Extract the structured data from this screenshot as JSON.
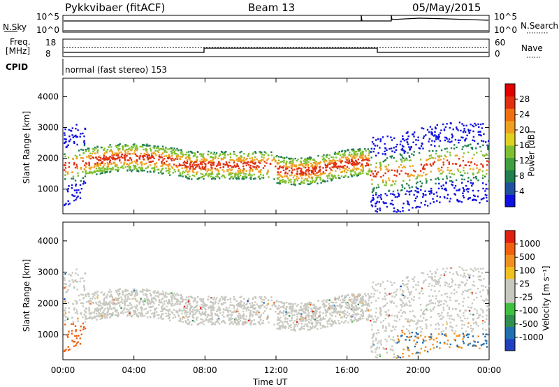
{
  "header": {
    "radar": "Pykkvibaer (fitACF)",
    "beam": "Beam 13",
    "date": "05/May/2015"
  },
  "strip1": {
    "left_label": "N.Sky",
    "right_label": "N.Search",
    "left_ticks": [
      "10^5",
      "10^0"
    ],
    "right_ticks": [
      "10^5",
      "10^0"
    ]
  },
  "strip2": {
    "left_label_1": "Freq.",
    "left_label_2": "[MHz]",
    "right_label": "Nave",
    "left_ticks": [
      "18",
      "8"
    ],
    "right_ticks": [
      "60",
      "0"
    ]
  },
  "cpid": {
    "label": "CPID",
    "text": "normal (fast stereo) 153"
  },
  "chart_data": [
    {
      "type": "heatmap",
      "title": "",
      "ylabel": "Slant Range [km]",
      "xlabel": "",
      "ylim": [
        200,
        4600
      ],
      "yticks": [
        "1000",
        "2000",
        "3000",
        "4000"
      ],
      "colorbar": {
        "label": "Power [dB]",
        "ticks": [
          "28",
          "24",
          "20",
          "16",
          "12",
          "8",
          "4"
        ],
        "colors": [
          "#1010e0",
          "#2050a0",
          "#208050",
          "#40a040",
          "#80c030",
          "#e0d020",
          "#f0a020",
          "#f07010",
          "#e03010",
          "#e00000"
        ]
      }
    },
    {
      "type": "heatmap",
      "title": "",
      "ylabel": "Slant Range [km]",
      "xlabel": "Time UT",
      "ylim": [
        200,
        4600
      ],
      "yticks": [
        "1000",
        "2000",
        "3000",
        "4000"
      ],
      "xticks": [
        "00:00",
        "04:00",
        "08:00",
        "12:00",
        "16:00",
        "20:00",
        "00:00"
      ],
      "colorbar": {
        "label": "Velocity [m s⁻¹]",
        "ticks": [
          "1000",
          "500",
          "100",
          "25",
          "-25",
          "-100",
          "-500",
          "-1000"
        ],
        "colors": [
          "#2040c0",
          "#2070b0",
          "#309050",
          "#40c040",
          "#c8c8c0",
          "#c8c8c0",
          "#f0c020",
          "#f09020",
          "#f06010",
          "#e02010"
        ]
      }
    }
  ]
}
